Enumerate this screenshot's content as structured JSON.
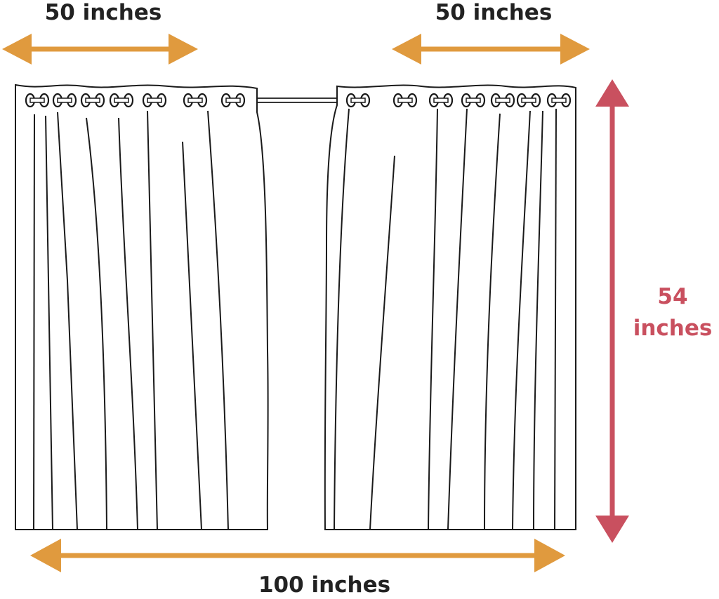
{
  "labels": {
    "left_width": "50 inches",
    "right_width": "50 inches",
    "total_width": "100 inches",
    "height_value": "54",
    "height_unit": "inches"
  },
  "colors": {
    "width_arrow": "#E09A3E",
    "height_arrow": "#C9505F",
    "line": "#1a1a1a"
  }
}
